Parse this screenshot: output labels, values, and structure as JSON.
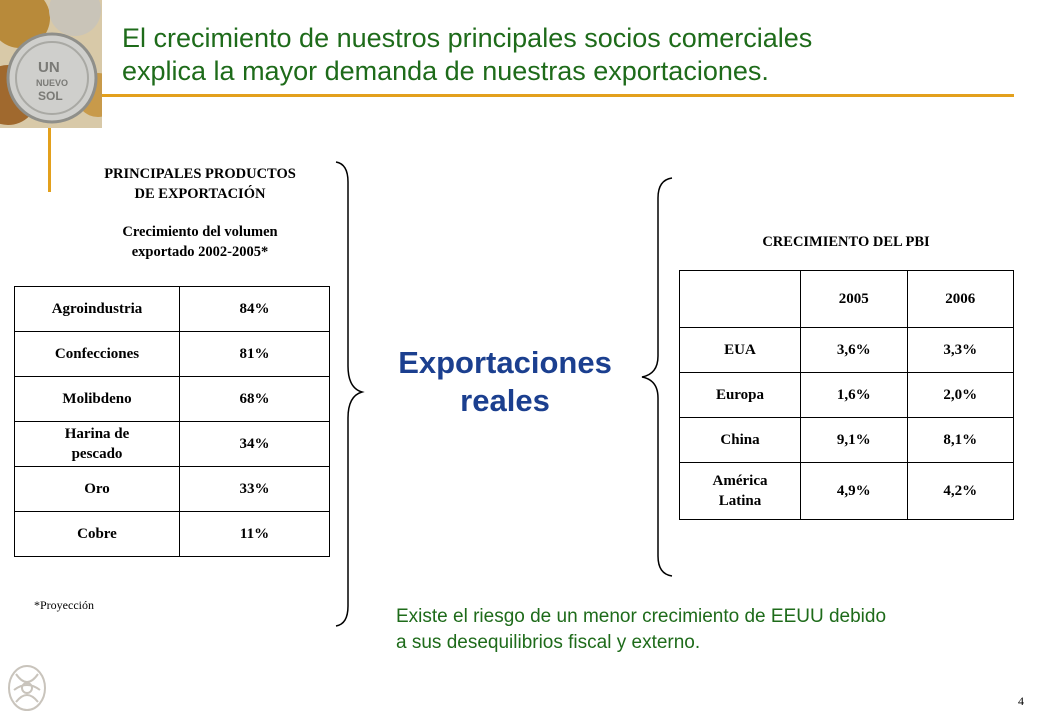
{
  "header": {
    "title_line1": "El crecimiento de nuestros principales socios comerciales",
    "title_line2": "explica la mayor demanda de nuestras exportaciones."
  },
  "left_panel": {
    "heading_line1": "PRINCIPALES PRODUCTOS",
    "heading_line2": "DE EXPORTACIÓN",
    "subheading_line1": "Crecimiento del volumen",
    "subheading_line2": "exportado 2002-2005*",
    "rows": [
      {
        "product": "Agroindustria",
        "value": "84%"
      },
      {
        "product": "Confecciones",
        "value": "81%"
      },
      {
        "product": "Molibdeno",
        "value": "68%"
      },
      {
        "product_line1": "Harina de",
        "product_line2": "pescado",
        "value": "34%"
      },
      {
        "product": "Oro",
        "value": "33%"
      },
      {
        "product": "Cobre",
        "value": "11%"
      }
    ],
    "footnote": "*Proyección"
  },
  "center": {
    "label_line1": "Exportaciones",
    "label_line2": "reales"
  },
  "right_panel": {
    "heading": "CRECIMIENTO DEL PBI",
    "columns": [
      "",
      "2005",
      "2006"
    ],
    "rows": [
      {
        "region": "EUA",
        "y2005": "3,6%",
        "y2006": "3,3%"
      },
      {
        "region": "Europa",
        "y2005": "1,6%",
        "y2006": "2,0%"
      },
      {
        "region": "China",
        "y2005": "9,1%",
        "y2006": "8,1%"
      },
      {
        "region_line1": "América",
        "region_line2": "Latina",
        "y2005": "4,9%",
        "y2006": "4,2%"
      }
    ]
  },
  "risk_note": {
    "line1": "Existe el riesgo de un menor crecimiento de EEUU debido",
    "line2": "a sus desequilibrios fiscal y externo."
  },
  "footer": {
    "page_number": "4"
  },
  "colors": {
    "title_green": "#1e6b1a",
    "accent_orange": "#e3a01c",
    "label_blue": "#1b3f8f"
  }
}
